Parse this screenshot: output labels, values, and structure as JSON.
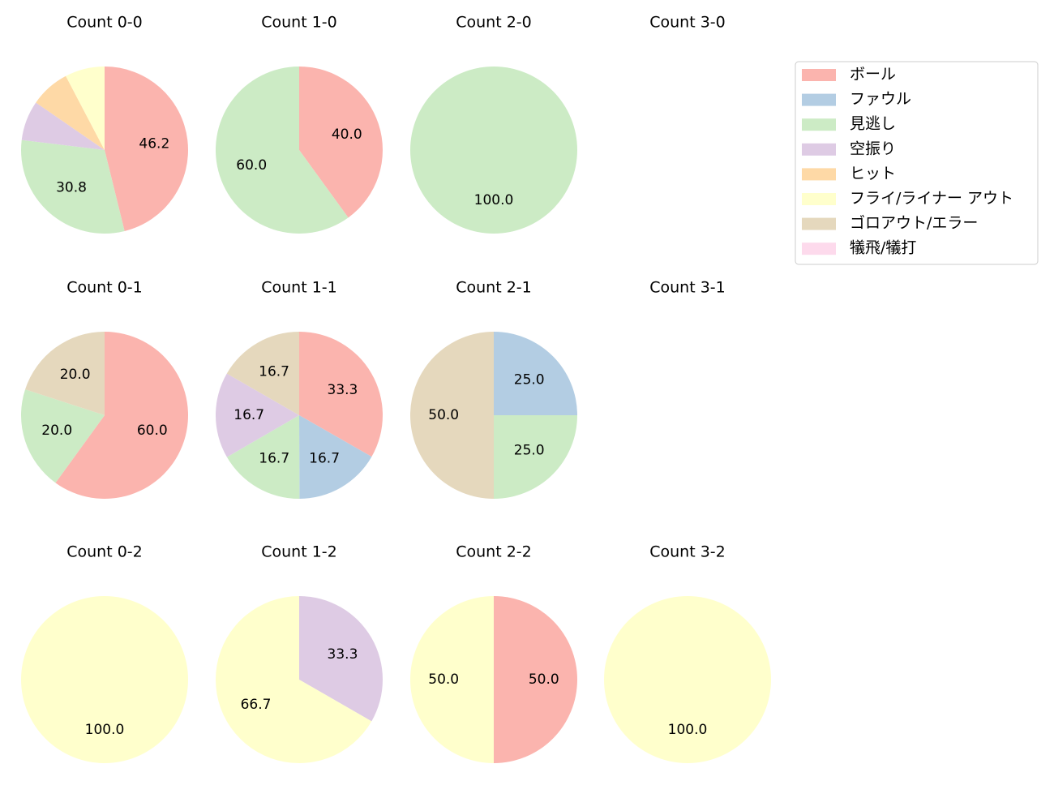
{
  "legend": {
    "names": [
      "ボール",
      "ファウル",
      "見逃し",
      "空振り",
      "ヒット",
      "フライ/ライナー アウト",
      "ゴロアウト/エラー",
      "犠飛/犠打"
    ],
    "colors": [
      "#fbb4ae",
      "#b3cde3",
      "#ccebc5",
      "#decbe4",
      "#fed9a6",
      "#ffffcc",
      "#e5d8bd",
      "#fddaec"
    ]
  },
  "chart_data": [
    {
      "type": "pie",
      "title": "Count 0-0",
      "values": [
        46.2,
        0,
        30.8,
        7.7,
        7.7,
        7.7,
        0,
        0
      ],
      "value_labels": [
        "46.2",
        null,
        "30.8",
        null,
        null,
        null,
        null,
        null
      ]
    },
    {
      "type": "pie",
      "title": "Count 1-0",
      "values": [
        40,
        0,
        60,
        0,
        0,
        0,
        0,
        0
      ],
      "value_labels": [
        "40.0",
        null,
        "60.0",
        null,
        null,
        null,
        null,
        null
      ]
    },
    {
      "type": "pie",
      "title": "Count 2-0",
      "values": [
        0,
        0,
        100,
        0,
        0,
        0,
        0,
        0
      ],
      "value_labels": [
        null,
        null,
        "100.0",
        null,
        null,
        null,
        null,
        null
      ]
    },
    {
      "type": "pie",
      "title": "Count 3-0",
      "values": [
        0,
        0,
        0,
        0,
        0,
        0,
        0,
        0
      ]
    },
    {
      "type": "pie",
      "title": "Count 0-1",
      "values": [
        60,
        0,
        20,
        0,
        0,
        0,
        20,
        0
      ],
      "value_labels": [
        "60.0",
        null,
        "20.0",
        null,
        null,
        null,
        "20.0",
        null
      ]
    },
    {
      "type": "pie",
      "title": "Count 1-1",
      "values": [
        33.3,
        16.7,
        16.7,
        16.7,
        0,
        0,
        16.7,
        0
      ],
      "value_labels": [
        "33.3",
        "16.7",
        "16.7",
        "16.7",
        null,
        null,
        "16.7",
        null
      ]
    },
    {
      "type": "pie",
      "title": "Count 2-1",
      "values": [
        0,
        25,
        25,
        0,
        0,
        0,
        50,
        0
      ],
      "value_labels": [
        null,
        "25.0",
        "25.0",
        null,
        null,
        null,
        "50.0",
        null
      ]
    },
    {
      "type": "pie",
      "title": "Count 3-1",
      "values": [
        0,
        0,
        0,
        0,
        0,
        0,
        0,
        0
      ]
    },
    {
      "type": "pie",
      "title": "Count 0-2",
      "values": [
        0,
        0,
        0,
        0,
        0,
        100,
        0,
        0
      ],
      "value_labels": [
        null,
        null,
        null,
        null,
        null,
        "100.0",
        null,
        null
      ]
    },
    {
      "type": "pie",
      "title": "Count 1-2",
      "values": [
        0,
        0,
        0,
        33.3,
        0,
        66.7,
        0,
        0
      ],
      "value_labels": [
        null,
        null,
        null,
        "33.3",
        null,
        "66.7",
        null,
        null
      ]
    },
    {
      "type": "pie",
      "title": "Count 2-2",
      "values": [
        50,
        0,
        0,
        0,
        0,
        50,
        0,
        0
      ],
      "value_labels": [
        "50.0",
        null,
        null,
        null,
        null,
        "50.0",
        null,
        null
      ]
    },
    {
      "type": "pie",
      "title": "Count 3-2",
      "values": [
        0,
        0,
        0,
        0,
        0,
        100,
        0,
        0
      ],
      "value_labels": [
        null,
        null,
        null,
        null,
        null,
        "100.0",
        null,
        null
      ]
    }
  ]
}
